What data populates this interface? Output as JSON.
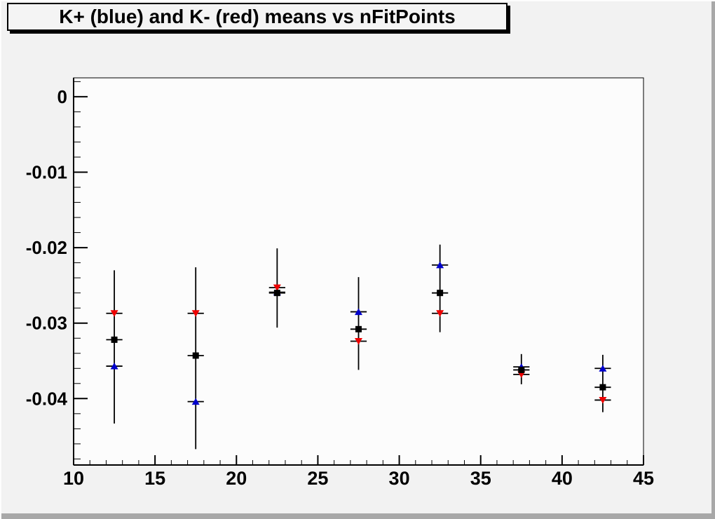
{
  "window": {
    "background_color": "#f2f2f2",
    "frame_fill_color": "#fcfcfc",
    "bevel_light_color": "#fdfdfd",
    "bevel_dark_color": "#a8a8a8"
  },
  "title_box": {
    "text": "K+ (blue) and K- (red) means vs nFitPoints"
  },
  "chart_data": {
    "type": "scatter",
    "title": "K+ (blue) and K- (red) means vs nFitPoints",
    "xlabel": "",
    "ylabel": "",
    "xlim": [
      10,
      45
    ],
    "ylim": [
      -0.0488,
      0.0025
    ],
    "grid": false,
    "legend_position": "none",
    "x_major_ticks": [
      10,
      15,
      20,
      25,
      30,
      35,
      40,
      45
    ],
    "x_tick_labels": [
      "10",
      "15",
      "20",
      "25",
      "30",
      "35",
      "40",
      "45"
    ],
    "x_minor_step": 1,
    "y_major_ticks": [
      0,
      -0.01,
      -0.02,
      -0.03,
      -0.04
    ],
    "y_tick_labels": [
      "0",
      "-0.01",
      "-0.02",
      "-0.03",
      "-0.04"
    ],
    "y_minor_step": 0.002,
    "x": [
      12.5,
      17.5,
      22.5,
      27.5,
      32.5,
      37.5,
      42.5
    ],
    "series": [
      {
        "name": "K+ (blue)",
        "slug": "k-plus",
        "marker": "triangle-up",
        "color": "#0000cc",
        "values": [
          -0.0357,
          -0.0404,
          -0.0259,
          -0.0285,
          -0.0223,
          -0.0358,
          -0.036
        ]
      },
      {
        "name": "K- (red)",
        "slug": "k-minus",
        "marker": "triangle-down",
        "color": "#ee0000",
        "values": [
          -0.0287,
          -0.0287,
          -0.0253,
          -0.0324,
          -0.0287,
          -0.0368,
          -0.0402
        ]
      },
      {
        "name": "mean (black)",
        "slug": "mean",
        "marker": "square",
        "color": "#000000",
        "values": [
          -0.0322,
          -0.0343,
          -0.026,
          -0.0308,
          -0.026,
          -0.0362,
          -0.0385
        ]
      }
    ],
    "error_bar_ranges": [
      {
        "x": 12.5,
        "low": -0.0433,
        "high": -0.023
      },
      {
        "x": 17.5,
        "low": -0.0467,
        "high": -0.0226
      },
      {
        "x": 22.5,
        "low": -0.0306,
        "high": -0.0201
      },
      {
        "x": 27.5,
        "low": -0.0362,
        "high": -0.0239
      },
      {
        "x": 32.5,
        "low": -0.0312,
        "high": -0.0196
      },
      {
        "x": 37.5,
        "low": -0.0381,
        "high": -0.0341
      },
      {
        "x": 42.5,
        "low": -0.0418,
        "high": -0.0342
      }
    ],
    "x_error_halfwidth": 0.5
  }
}
